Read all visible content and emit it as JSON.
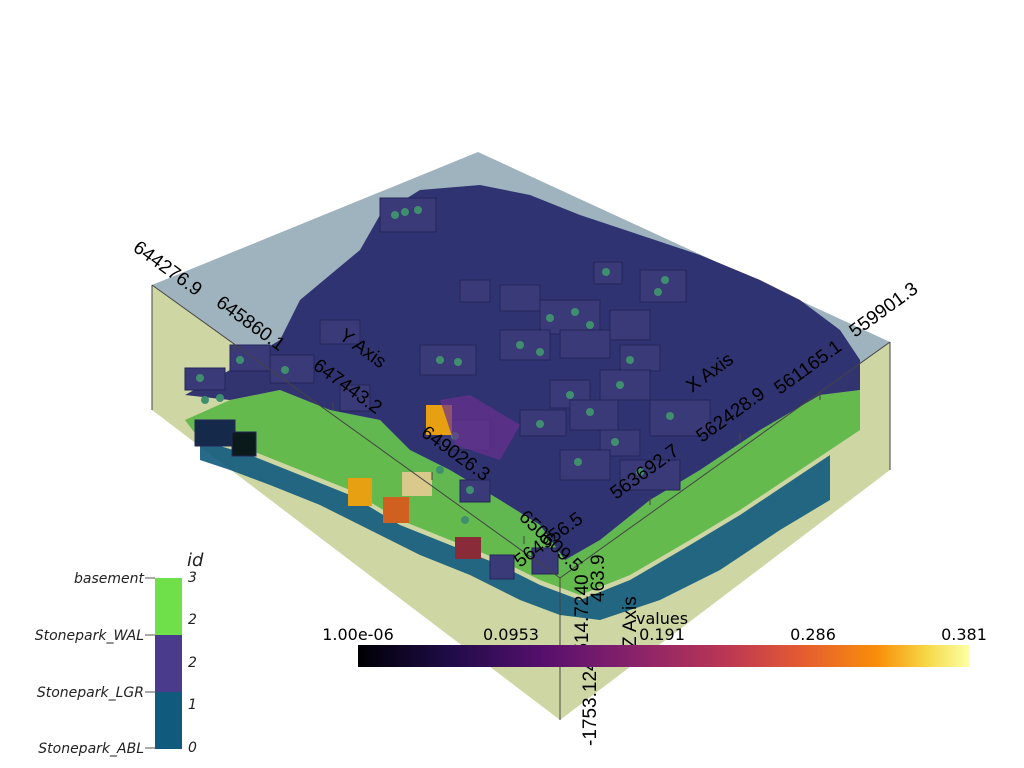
{
  "axes": {
    "y_title": "Y Axis",
    "x_title": "X Axis",
    "z_title": "Z Axis",
    "y_ticks": [
      "644276.9",
      "645860.1",
      "647443.2",
      "649026.3",
      "650609.5"
    ],
    "x_ticks": [
      "559901.3",
      "561165.1",
      "562428.9",
      "563692.7",
      "564956.5"
    ],
    "z_ticks": [
      "463.9",
      "-514.7240",
      "-1753.1249"
    ]
  },
  "id_legend": {
    "title": "id",
    "formations": [
      "basement",
      "Stonepark_WAL",
      "Stonepark_LGR",
      "Stonepark_ABL"
    ],
    "values": [
      "3",
      "2",
      "2",
      "1",
      "0"
    ],
    "colors": [
      "#6fe04a",
      "#4a3b8c",
      "#0f5a7d"
    ]
  },
  "values_colorbar": {
    "title": "values",
    "tick_labels": [
      "1.00e-06",
      "0.0953",
      "0.191",
      "0.286",
      "0.381"
    ],
    "colormap": "inferno"
  }
}
